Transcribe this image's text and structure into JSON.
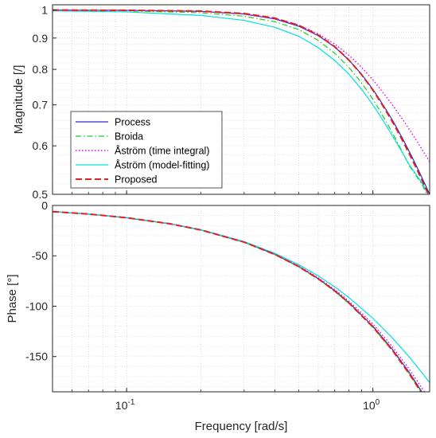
{
  "chart_data": [
    {
      "type": "line",
      "panel": "magnitude",
      "ylabel": "Magnitude [/]",
      "xlabel": "",
      "xscale": "log",
      "yscale": "log",
      "xlim": [
        0.05,
        1.7
      ],
      "ylim": [
        0.5,
        1.02
      ],
      "xticks": [
        {
          "value": 0.1,
          "base": "10",
          "exp": "-1"
        },
        {
          "value": 1,
          "base": "10",
          "exp": "0"
        }
      ],
      "yticks": [
        {
          "value": 0.5,
          "label": "0.5"
        },
        {
          "value": 0.6,
          "label": "0.6"
        },
        {
          "value": 0.7,
          "label": "0.7"
        },
        {
          "value": 0.8,
          "label": "0.8"
        },
        {
          "value": 0.9,
          "label": "0.9"
        },
        {
          "value": 1,
          "label": "1"
        }
      ],
      "grid": true,
      "legend_position": "bottom-left",
      "series": [
        {
          "name": "Process",
          "color": "#2b2bd6",
          "dash": "solid",
          "x": [
            0.05,
            0.1,
            0.2,
            0.3,
            0.4,
            0.5,
            0.6,
            0.7,
            0.8,
            0.9,
            1.0,
            1.2,
            1.4,
            1.6,
            1.7
          ],
          "y": [
            1.0,
            0.999,
            0.995,
            0.985,
            0.967,
            0.941,
            0.908,
            0.87,
            0.828,
            0.785,
            0.742,
            0.661,
            0.589,
            0.527,
            0.5
          ]
        },
        {
          "name": "Broida",
          "color": "#22cc22",
          "dash": "dashdot",
          "x": [
            0.05,
            0.1,
            0.2,
            0.3,
            0.4,
            0.5,
            0.6,
            0.7,
            0.8,
            0.9,
            1.0,
            1.2,
            1.4,
            1.6,
            1.7
          ],
          "y": [
            0.999,
            0.997,
            0.99,
            0.977,
            0.957,
            0.929,
            0.892,
            0.85,
            0.805,
            0.76,
            0.715,
            0.63,
            0.558,
            0.515,
            0.485
          ]
        },
        {
          "name": "Åström (time integral)",
          "color": "#ee00ee",
          "dash": "dotted",
          "x": [
            0.05,
            0.1,
            0.2,
            0.3,
            0.4,
            0.5,
            0.6,
            0.7,
            0.8,
            0.9,
            1.0,
            1.2,
            1.4,
            1.6,
            1.7
          ],
          "y": [
            1.0,
            0.999,
            0.995,
            0.986,
            0.969,
            0.945,
            0.914,
            0.88,
            0.843,
            0.806,
            0.769,
            0.7,
            0.64,
            0.588,
            0.565
          ]
        },
        {
          "name": "Åström (model-fitting)",
          "color": "#00e0e0",
          "dash": "solid",
          "x": [
            0.05,
            0.1,
            0.2,
            0.3,
            0.4,
            0.5,
            0.6,
            0.7,
            0.8,
            0.9,
            1.0,
            1.2,
            1.4,
            1.6,
            1.7
          ],
          "y": [
            0.997,
            0.993,
            0.98,
            0.962,
            0.937,
            0.906,
            0.868,
            0.827,
            0.785,
            0.742,
            0.7,
            0.623,
            0.56,
            0.518,
            0.495
          ]
        },
        {
          "name": "Proposed",
          "color": "#e02020",
          "dash": "dashed",
          "x": [
            0.05,
            0.1,
            0.2,
            0.3,
            0.4,
            0.5,
            0.6,
            0.7,
            0.8,
            0.9,
            1.0,
            1.2,
            1.4,
            1.6,
            1.7
          ],
          "y": [
            1.0,
            0.999,
            0.996,
            0.987,
            0.97,
            0.944,
            0.91,
            0.871,
            0.828,
            0.784,
            0.74,
            0.657,
            0.584,
            0.522,
            0.495
          ]
        }
      ]
    },
    {
      "type": "line",
      "panel": "phase",
      "ylabel": "Phase [°]",
      "xlabel": "Frequency [rad/s]",
      "xscale": "log",
      "xlim": [
        0.05,
        1.7
      ],
      "ylim": [
        -185,
        0
      ],
      "yticks": [
        {
          "value": 0,
          "label": "0"
        },
        {
          "value": -50,
          "label": "-50"
        },
        {
          "value": -100,
          "label": "-100"
        },
        {
          "value": -150,
          "label": "-150"
        }
      ],
      "grid": true,
      "series": [
        {
          "name": "Process",
          "color": "#2b2bd6",
          "dash": "solid",
          "x": [
            0.05,
            0.07,
            0.1,
            0.15,
            0.2,
            0.3,
            0.4,
            0.5,
            0.6,
            0.7,
            0.8,
            1.0,
            1.2,
            1.4,
            1.6,
            1.7
          ],
          "y": [
            -6.1,
            -8.5,
            -12.2,
            -18.2,
            -24.3,
            -36.4,
            -48.6,
            -60.6,
            -72.7,
            -84.6,
            -96.5,
            -119.9,
            -142.8,
            -165.2,
            -187.0,
            -198.0
          ]
        },
        {
          "name": "Broida",
          "color": "#22cc22",
          "dash": "dashdot",
          "x": [
            0.05,
            0.07,
            0.1,
            0.15,
            0.2,
            0.3,
            0.4,
            0.5,
            0.6,
            0.7,
            0.8,
            1.0,
            1.2,
            1.4,
            1.6,
            1.7
          ],
          "y": [
            -6.2,
            -8.6,
            -12.3,
            -18.3,
            -24.4,
            -36.6,
            -48.8,
            -61.0,
            -73.2,
            -85.3,
            -97.4,
            -121.0,
            -144.0,
            -166.5,
            -188.0,
            -199.0
          ]
        },
        {
          "name": "Åström (time integral)",
          "color": "#ee00ee",
          "dash": "dotted",
          "x": [
            0.05,
            0.07,
            0.1,
            0.15,
            0.2,
            0.3,
            0.4,
            0.5,
            0.6,
            0.7,
            0.8,
            1.0,
            1.2,
            1.4,
            1.6,
            1.7
          ],
          "y": [
            -6.1,
            -8.5,
            -12.2,
            -18.2,
            -24.2,
            -36.2,
            -48.2,
            -60.0,
            -71.8,
            -83.4,
            -95.0,
            -117.8,
            -140.2,
            -162.0,
            -183.0,
            -193.0
          ]
        },
        {
          "name": "Åström (model-fitting)",
          "color": "#00e0e0",
          "dash": "solid",
          "x": [
            0.05,
            0.07,
            0.1,
            0.15,
            0.2,
            0.3,
            0.4,
            0.5,
            0.6,
            0.7,
            0.8,
            1.0,
            1.2,
            1.4,
            1.6,
            1.7
          ],
          "y": [
            -6.0,
            -8.4,
            -12.0,
            -18.0,
            -24.0,
            -35.8,
            -47.5,
            -58.8,
            -69.9,
            -80.8,
            -91.5,
            -112.0,
            -131.5,
            -150.0,
            -167.5,
            -176.0
          ]
        },
        {
          "name": "Proposed",
          "color": "#e02020",
          "dash": "dashed",
          "x": [
            0.05,
            0.07,
            0.1,
            0.15,
            0.2,
            0.3,
            0.4,
            0.5,
            0.6,
            0.7,
            0.8,
            1.0,
            1.2,
            1.4,
            1.6,
            1.7
          ],
          "y": [
            -6.1,
            -8.5,
            -12.2,
            -18.2,
            -24.3,
            -36.4,
            -48.6,
            -60.7,
            -72.8,
            -84.8,
            -96.8,
            -120.5,
            -143.8,
            -166.5,
            -188.5,
            -199.5
          ]
        }
      ]
    }
  ]
}
